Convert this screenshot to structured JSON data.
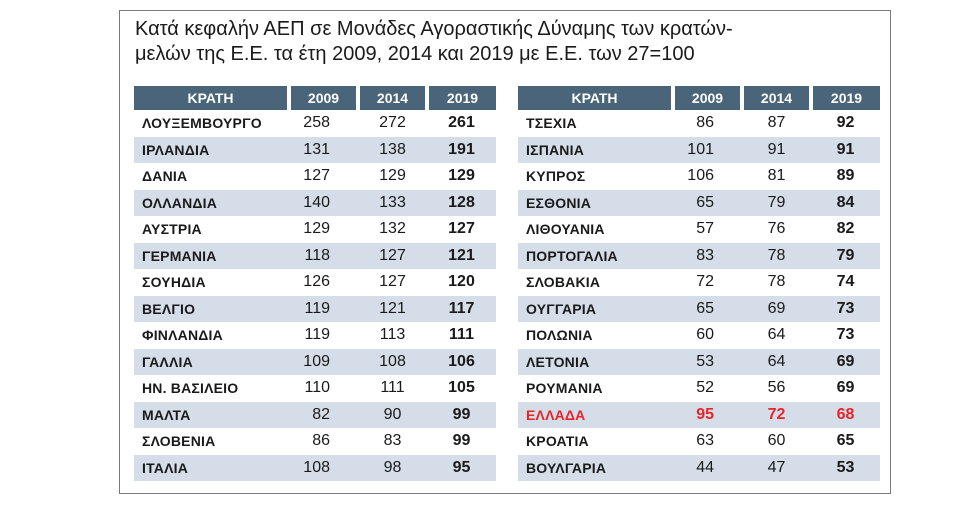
{
  "title": {
    "line1": "Κατά κεφαλήν ΑΕΠ σε Μονάδες Αγοραστικής Δύναμης των κρατών-",
    "line2": "μελών της Ε.Ε. τα έτη 2009, 2014 και 2019 με Ε.Ε. των 27=100"
  },
  "colors": {
    "header_bg": "#4a6479",
    "stripe": "#d4dde8",
    "highlight": "#e8242a"
  },
  "chart_data": {
    "type": "table",
    "columns": [
      "ΚΡΑΤΗ",
      "2009",
      "2014",
      "2019"
    ],
    "tables": [
      {
        "rows": [
          {
            "name": "ΛΟΥΞΕΜΒΟΥΡΓΟ",
            "v2009": 258,
            "v2014": 272,
            "v2019": 261
          },
          {
            "name": "ΙΡΛΑΝΔΙΑ",
            "v2009": 131,
            "v2014": 138,
            "v2019": 191
          },
          {
            "name": "ΔΑΝΙΑ",
            "v2009": 127,
            "v2014": 129,
            "v2019": 129
          },
          {
            "name": "ΟΛΛΑΝΔΙΑ",
            "v2009": 140,
            "v2014": 133,
            "v2019": 128
          },
          {
            "name": "ΑΥΣΤΡΙΑ",
            "v2009": 129,
            "v2014": 132,
            "v2019": 127
          },
          {
            "name": "ΓΕΡΜΑΝΙΑ",
            "v2009": 118,
            "v2014": 127,
            "v2019": 121
          },
          {
            "name": "ΣΟΥΗΔΙΑ",
            "v2009": 126,
            "v2014": 127,
            "v2019": 120
          },
          {
            "name": "ΒΕΛΓΙΟ",
            "v2009": 119,
            "v2014": 121,
            "v2019": 117
          },
          {
            "name": "ΦΙΝΛΑΝΔΙΑ",
            "v2009": 119,
            "v2014": 113,
            "v2019": 111
          },
          {
            "name": "ΓΑΛΛΙΑ",
            "v2009": 109,
            "v2014": 108,
            "v2019": 106
          },
          {
            "name": "ΗΝ. ΒΑΣΙΛΕΙΟ",
            "v2009": 110,
            "v2014": 111,
            "v2019": 105
          },
          {
            "name": "ΜΑΛΤΑ",
            "v2009": 82,
            "v2014": 90,
            "v2019": 99
          },
          {
            "name": "ΣΛΟΒΕΝΙΑ",
            "v2009": 86,
            "v2014": 83,
            "v2019": 99
          },
          {
            "name": "ΙΤΑΛΙΑ",
            "v2009": 108,
            "v2014": 98,
            "v2019": 95
          }
        ]
      },
      {
        "rows": [
          {
            "name": "ΤΣΕΧΙΑ",
            "v2009": 86,
            "v2014": 87,
            "v2019": 92
          },
          {
            "name": "ΙΣΠΑΝΙΑ",
            "v2009": 101,
            "v2014": 91,
            "v2019": 91
          },
          {
            "name": "ΚΥΠΡΟΣ",
            "v2009": 106,
            "v2014": 81,
            "v2019": 89
          },
          {
            "name": "ΕΣΘΟΝΙΑ",
            "v2009": 65,
            "v2014": 79,
            "v2019": 84
          },
          {
            "name": "ΛΙΘΟΥΑΝΙΑ",
            "v2009": 57,
            "v2014": 76,
            "v2019": 82
          },
          {
            "name": "ΠΟΡΤΟΓΑΛΙΑ",
            "v2009": 83,
            "v2014": 78,
            "v2019": 79
          },
          {
            "name": "ΣΛΟΒΑΚΙΑ",
            "v2009": 72,
            "v2014": 78,
            "v2019": 74
          },
          {
            "name": "ΟΥΓΓΑΡΙΑ",
            "v2009": 65,
            "v2014": 69,
            "v2019": 73
          },
          {
            "name": "ΠΟΛΩΝΙΑ",
            "v2009": 60,
            "v2014": 64,
            "v2019": 73
          },
          {
            "name": "ΛΕΤΟΝΙΑ",
            "v2009": 53,
            "v2014": 64,
            "v2019": 69
          },
          {
            "name": "ΡΟΥΜΑΝΙΑ",
            "v2009": 52,
            "v2014": 56,
            "v2019": 69
          },
          {
            "name": "ΕΛΛΑΔΑ",
            "v2009": 95,
            "v2014": 72,
            "v2019": 68,
            "highlight": true
          },
          {
            "name": "ΚΡΟΑΤΙΑ",
            "v2009": 63,
            "v2014": 60,
            "v2019": 65
          },
          {
            "name": "ΒΟΥΛΓΑΡΙΑ",
            "v2009": 44,
            "v2014": 47,
            "v2019": 53
          }
        ]
      }
    ]
  }
}
